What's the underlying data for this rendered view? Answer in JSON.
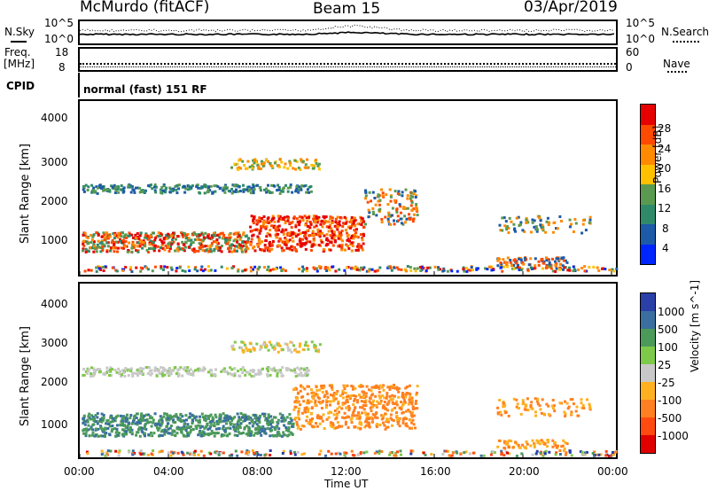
{
  "header": {
    "station": "McMurdo (fitACF)",
    "beam": "Beam 15",
    "date": "03/Apr/2019"
  },
  "panels": {
    "nsky_label": "N.Sky",
    "nsearch_label": "N.Search",
    "noise_left_ticks": [
      "10^5",
      "10^0"
    ],
    "noise_right_ticks": [
      "10^5",
      "10^0"
    ],
    "freq_label": "Freq.",
    "freq_unit": "[MHz]",
    "freq_ticks": [
      "18",
      "8"
    ],
    "nave_label": "Nave",
    "nave_ticks": [
      "60",
      "0"
    ],
    "cpid_label": "CPID",
    "cpid_text": "normal (fast) 151 RF"
  },
  "chart_data": [
    {
      "type": "heatmap",
      "title": "",
      "ylabel": "Slant Range [km]",
      "xlabel": "",
      "ylim": [
        200,
        4500
      ],
      "y_ticks": [
        "1000",
        "2000",
        "3000",
        "4000"
      ],
      "colorbar_label": "Power [dB]",
      "colorbar_ticks": [
        "28",
        "24",
        "20",
        "16",
        "12",
        "8",
        "4"
      ],
      "colorscale": [
        "#e60000",
        "#ff4a00",
        "#ff8a00",
        "#ffc000",
        "#5a9a50",
        "#2f8a6a",
        "#1d5aa8",
        "#0026ff"
      ]
    },
    {
      "type": "heatmap",
      "title": "",
      "ylabel": "Slant Range [km]",
      "xlabel": "Time UT",
      "x_ticks": [
        "00:00",
        "04:00",
        "08:00",
        "12:00",
        "16:00",
        "20:00",
        "00:00"
      ],
      "ylim": [
        200,
        4500
      ],
      "y_ticks": [
        "1000",
        "2000",
        "3000",
        "4000"
      ],
      "colorbar_label": "Velocity [m s^-1]",
      "colorbar_ticks": [
        "1000",
        "500",
        "100",
        "25",
        "-25",
        "-100",
        "-500",
        "-1000"
      ],
      "colorscale": [
        "#2b3fa8",
        "#3a6f9f",
        "#4b9a5a",
        "#7ec94a",
        "#c8c8c8",
        "#ffb020",
        "#ff8020",
        "#ff4a10",
        "#e00000"
      ]
    }
  ]
}
